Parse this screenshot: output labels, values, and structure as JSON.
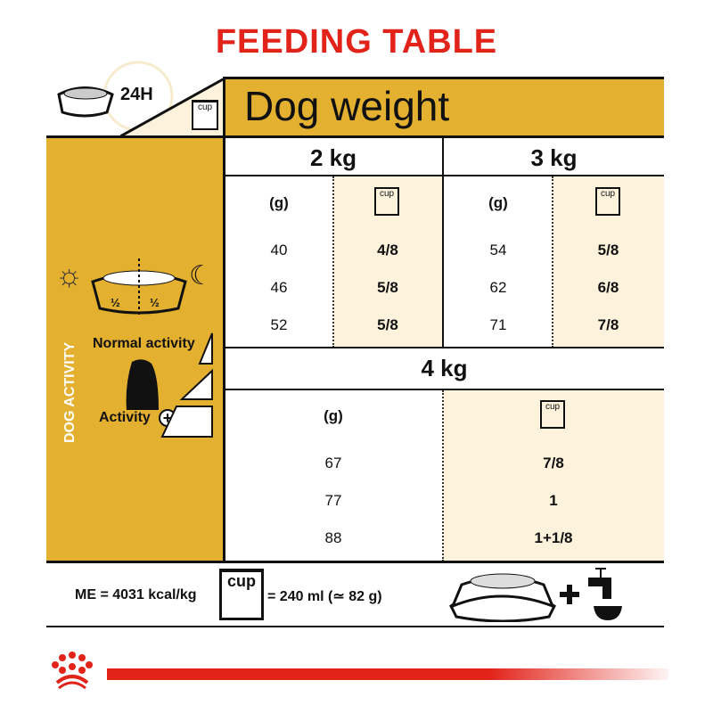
{
  "title": "FEEDING TABLE",
  "header": {
    "hours": "24H",
    "cup_label": "cup",
    "dog_weight": "Dog weight"
  },
  "sidebar": {
    "dog_activity": "DOG ACTIVITY",
    "half_left": "½",
    "half_right": "½",
    "normal_activity": "Normal activity",
    "activity_plus": "Activity"
  },
  "table": {
    "top_groups": [
      {
        "weight": "2 kg",
        "grams_label": "(g)",
        "cup_label": "cup",
        "rows": [
          {
            "g": "40",
            "cup": "4/8"
          },
          {
            "g": "46",
            "cup": "5/8"
          },
          {
            "g": "52",
            "cup": "5/8"
          }
        ]
      },
      {
        "weight": "3 kg",
        "grams_label": "(g)",
        "cup_label": "cup",
        "rows": [
          {
            "g": "54",
            "cup": "5/8"
          },
          {
            "g": "62",
            "cup": "6/8"
          },
          {
            "g": "71",
            "cup": "7/8"
          }
        ]
      }
    ],
    "bottom_group": {
      "weight": "4 kg",
      "grams_label": "(g)",
      "cup_label": "cup",
      "rows": [
        {
          "g": "67",
          "cup": "7/8"
        },
        {
          "g": "77",
          "cup": "1"
        },
        {
          "g": "88",
          "cup": "1+1/8"
        }
      ]
    }
  },
  "footer": {
    "energy": "ME = 4031 kcal/kg",
    "cup_label": "cup",
    "cup_equiv": "= 240 ml (≃ 82 g)"
  },
  "colors": {
    "brand_red": "#e2231a",
    "gold": "#e3b02f",
    "cream": "#fdf3dc"
  }
}
